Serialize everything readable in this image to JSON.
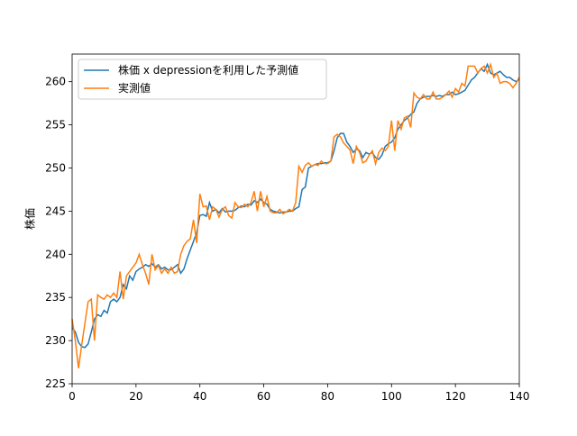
{
  "chart_data": {
    "type": "line",
    "ylabel": "株価",
    "x": [
      0,
      1,
      2,
      3,
      4,
      5,
      6,
      7,
      8,
      9,
      10,
      11,
      12,
      13,
      14,
      15,
      16,
      17,
      18,
      19,
      20,
      21,
      22,
      23,
      24,
      25,
      26,
      27,
      28,
      29,
      30,
      31,
      32,
      33,
      34,
      35,
      36,
      37,
      38,
      39,
      40,
      41,
      42,
      43,
      44,
      45,
      46,
      47,
      48,
      49,
      50,
      51,
      52,
      53,
      54,
      55,
      56,
      57,
      58,
      59,
      60,
      61,
      62,
      63,
      64,
      65,
      66,
      67,
      68,
      69,
      70,
      71,
      72,
      73,
      74,
      75,
      76,
      77,
      78,
      79,
      80,
      81,
      82,
      83,
      84,
      85,
      86,
      87,
      88,
      89,
      90,
      91,
      92,
      93,
      94,
      95,
      96,
      97,
      98,
      99,
      100,
      101,
      102,
      103,
      104,
      105,
      106,
      107,
      108,
      109,
      110,
      111,
      112,
      113,
      114,
      115,
      116,
      117,
      118,
      119,
      120,
      121,
      122,
      123,
      124,
      125,
      126,
      127,
      128,
      129,
      130,
      131,
      132,
      133,
      134,
      135,
      136,
      137,
      138,
      139,
      140
    ],
    "series": [
      {
        "name": "株価 x depressionを利用した予測値",
        "color": "#1f77b4",
        "values": [
          231.5,
          231,
          229.8,
          229.3,
          229.2,
          229.6,
          231,
          232.5,
          233,
          232.8,
          233.5,
          233.2,
          234.5,
          234.8,
          234.5,
          235,
          236.5,
          236,
          237.5,
          237,
          238,
          238.3,
          238.5,
          238.8,
          238.6,
          238.9,
          238.5,
          238.8,
          238.3,
          238.5,
          238.2,
          238.2,
          238.5,
          238.8,
          237.8,
          238.3,
          239.5,
          240.5,
          241.5,
          242.5,
          244.5,
          244.6,
          244.4,
          246,
          245,
          245.2,
          244.8,
          245.3,
          244.9,
          245,
          245,
          245.1,
          245.4,
          245.6,
          245.5,
          245.8,
          245.7,
          246.2,
          246,
          246.4,
          246,
          245.8,
          245.2,
          245,
          244.9,
          244.8,
          244.9,
          244.9,
          245,
          245,
          245.3,
          245.5,
          247.5,
          247.8,
          250,
          250.2,
          250.4,
          250.5,
          250.5,
          250.6,
          250.6,
          250.8,
          252,
          253.5,
          254,
          254,
          253,
          252.5,
          251.8,
          252.2,
          252,
          251.2,
          251.8,
          251.6,
          251.8,
          251.2,
          251,
          251.5,
          252.5,
          252.8,
          253,
          253.5,
          254.5,
          255,
          255.5,
          255.8,
          256.2,
          256.5,
          257.5,
          258,
          258.2,
          258.3,
          258.3,
          258.4,
          258.3,
          258.4,
          258.3,
          258.5,
          258.5,
          258.8,
          258.5,
          258.6,
          258.8,
          259,
          259.6,
          260.2,
          260.5,
          261,
          261.5,
          261.2,
          262,
          261,
          260.8,
          261,
          261.2,
          260.8,
          260.5,
          260.5,
          260.2,
          260,
          260.3
        ]
      },
      {
        "name": "実測値",
        "color": "#ff7f0e",
        "values": [
          232.5,
          230,
          226.8,
          229.5,
          232,
          234.5,
          234.8,
          230,
          235.3,
          235,
          234.8,
          235.3,
          235,
          235.5,
          235,
          238,
          234.8,
          237.5,
          238,
          238.5,
          239,
          240,
          238.8,
          237.8,
          236.5,
          240,
          238.2,
          238.7,
          237.8,
          238.3,
          237.8,
          238.5,
          237.8,
          238,
          240,
          241,
          241.5,
          241.8,
          244,
          241.3,
          247,
          245.5,
          245.6,
          244,
          245.5,
          245.2,
          244.3,
          245.2,
          245.5,
          244.5,
          244.2,
          246,
          245.5,
          245.4,
          245.8,
          245.5,
          246,
          247.3,
          245,
          247.3,
          245.5,
          246.7,
          245,
          244.8,
          244.8,
          245.2,
          244.7,
          244.9,
          245.2,
          245,
          246,
          250.2,
          249.5,
          250.3,
          250.6,
          250.2,
          250.4,
          250.3,
          250.8,
          250.5,
          250.5,
          250.8,
          253.6,
          253.9,
          253.6,
          252.9,
          252.5,
          252.1,
          250.5,
          252.5,
          251.8,
          250.6,
          250.8,
          251.5,
          252,
          250.5,
          251.8,
          252.3,
          252,
          252.5,
          255.5,
          252,
          255.5,
          254.5,
          255.8,
          256,
          254.7,
          258.7,
          258.2,
          258,
          258.5,
          258,
          258,
          258.8,
          258,
          258,
          258.2,
          258.5,
          258.9,
          258.2,
          259.2,
          258.8,
          259.8,
          259.5,
          261.8,
          261.8,
          261.8,
          261,
          261.5,
          261.8,
          261,
          262,
          260.5,
          261,
          259.8,
          260,
          260,
          259.8,
          259.3,
          259.8,
          260.5
        ]
      }
    ],
    "xlim": [
      0,
      140
    ],
    "xticks": [
      0,
      20,
      40,
      60,
      80,
      100,
      120,
      140
    ],
    "ylim": [
      225,
      263.2
    ],
    "yticks": [
      225,
      230,
      235,
      240,
      245,
      250,
      255,
      260
    ],
    "grid": false,
    "legend": "upper-left"
  }
}
